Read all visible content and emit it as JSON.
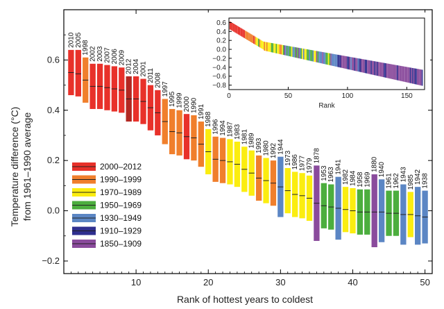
{
  "chart_data": {
    "type": "bar",
    "title": "",
    "xlabel": "Rank of hottest years to coldest",
    "ylabel_line1": "Temperature difference (°C)",
    "ylabel_line2": "from 1961–1990 average",
    "xlim": [
      0,
      51
    ],
    "ylim": [
      -0.25,
      0.8
    ],
    "xticks": [
      10,
      20,
      30,
      40,
      50
    ],
    "yticks": [
      -0.2,
      0.0,
      0.2,
      0.4,
      0.6
    ],
    "ytick_labels": [
      "−0.2",
      "0.0",
      "0.2",
      "0.4",
      "0.6"
    ],
    "legend": [
      {
        "label": "2000–2012",
        "color": "#e8312a"
      },
      {
        "label": "1990–1999",
        "color": "#f07f2c"
      },
      {
        "label": "1970–1989",
        "color": "#fbed10"
      },
      {
        "label": "1950–1969",
        "color": "#4cae3e"
      },
      {
        "label": "1930–1949",
        "color": "#5b86c4"
      },
      {
        "label": "1910–1929",
        "color": "#2f2f8f"
      },
      {
        "label": "1850–1909",
        "color": "#8a4b9c"
      }
    ],
    "colors": {
      "2000–2012": "#e8312a",
      "2000–2012 dark": "#b32822",
      "1990–1999": "#f07f2c",
      "1970–1989": "#fbed10",
      "1950–1969": "#4cae3e",
      "1930–1949": "#5b86c4",
      "1910–1929": "#2f2f8f",
      "1850–1909": "#8a4b9c"
    },
    "years": [
      {
        "rank": 1,
        "label": "2010",
        "mid": 0.55,
        "low": 0.46,
        "high": 0.64,
        "period": "2000–2012"
      },
      {
        "rank": 2,
        "label": "2005",
        "mid": 0.545,
        "low": 0.455,
        "high": 0.64,
        "period": "2000–2012"
      },
      {
        "rank": 3,
        "label": "1998",
        "mid": 0.52,
        "low": 0.43,
        "high": 0.61,
        "period": "1990–1999"
      },
      {
        "rank": 4,
        "label": "2002",
        "mid": 0.495,
        "low": 0.405,
        "high": 0.585,
        "period": "2000–2012"
      },
      {
        "rank": 5,
        "label": "2003",
        "mid": 0.495,
        "low": 0.405,
        "high": 0.585,
        "period": "2000–2012"
      },
      {
        "rank": 6,
        "label": "2007",
        "mid": 0.49,
        "low": 0.4,
        "high": 0.58,
        "period": "2000–2012"
      },
      {
        "rank": 7,
        "label": "2006",
        "mid": 0.485,
        "low": 0.395,
        "high": 0.575,
        "period": "2000–2012"
      },
      {
        "rank": 8,
        "label": "2009",
        "mid": 0.48,
        "low": 0.39,
        "high": 0.57,
        "period": "2000–2012"
      },
      {
        "rank": 9,
        "label": "2012",
        "mid": 0.445,
        "low": 0.355,
        "high": 0.535,
        "period": "2000–2012 dark"
      },
      {
        "rank": 10,
        "label": "2004",
        "mid": 0.445,
        "low": 0.355,
        "high": 0.535,
        "period": "2000–2012"
      },
      {
        "rank": 11,
        "label": "2001",
        "mid": 0.435,
        "low": 0.345,
        "high": 0.525,
        "period": "2000–2012"
      },
      {
        "rank": 12,
        "label": "2011",
        "mid": 0.41,
        "low": 0.32,
        "high": 0.5,
        "period": "2000–2012"
      },
      {
        "rank": 13,
        "label": "2008",
        "mid": 0.39,
        "low": 0.3,
        "high": 0.48,
        "period": "2000–2012"
      },
      {
        "rank": 14,
        "label": "1997",
        "mid": 0.355,
        "low": 0.265,
        "high": 0.445,
        "period": "1990–1999"
      },
      {
        "rank": 15,
        "label": "1995",
        "mid": 0.315,
        "low": 0.225,
        "high": 0.405,
        "period": "1990–1999"
      },
      {
        "rank": 16,
        "label": "1999",
        "mid": 0.31,
        "low": 0.22,
        "high": 0.4,
        "period": "1990–1999"
      },
      {
        "rank": 17,
        "label": "2000",
        "mid": 0.295,
        "low": 0.205,
        "high": 0.385,
        "period": "2000–2012"
      },
      {
        "rank": 18,
        "label": "1990",
        "mid": 0.29,
        "low": 0.2,
        "high": 0.38,
        "period": "1990–1999"
      },
      {
        "rank": 19,
        "label": "1991",
        "mid": 0.265,
        "low": 0.175,
        "high": 0.355,
        "period": "1990–1999"
      },
      {
        "rank": 20,
        "label": "1988",
        "mid": 0.235,
        "low": 0.145,
        "high": 0.325,
        "period": "1970–1989"
      },
      {
        "rank": 21,
        "label": "1996",
        "mid": 0.205,
        "low": 0.115,
        "high": 0.295,
        "period": "1990–1999"
      },
      {
        "rank": 22,
        "label": "1994",
        "mid": 0.2,
        "low": 0.11,
        "high": 0.29,
        "period": "1990–1999"
      },
      {
        "rank": 23,
        "label": "1987",
        "mid": 0.195,
        "low": 0.105,
        "high": 0.285,
        "period": "1970–1989"
      },
      {
        "rank": 24,
        "label": "1983",
        "mid": 0.185,
        "low": 0.095,
        "high": 0.275,
        "period": "1970–1989"
      },
      {
        "rank": 25,
        "label": "1981",
        "mid": 0.165,
        "low": 0.075,
        "high": 0.255,
        "period": "1970–1989"
      },
      {
        "rank": 26,
        "label": "1989",
        "mid": 0.15,
        "low": 0.06,
        "high": 0.24,
        "period": "1970–1989"
      },
      {
        "rank": 27,
        "label": "1993",
        "mid": 0.13,
        "low": 0.04,
        "high": 0.22,
        "period": "1990–1999"
      },
      {
        "rank": 28,
        "label": "1980",
        "mid": 0.12,
        "low": 0.03,
        "high": 0.21,
        "period": "1970–1989"
      },
      {
        "rank": 29,
        "label": "1992",
        "mid": 0.11,
        "low": 0.02,
        "high": 0.2,
        "period": "1990–1999"
      },
      {
        "rank": 30,
        "label": "1944",
        "mid": 0.095,
        "low": -0.025,
        "high": 0.215,
        "period": "1930–1949"
      },
      {
        "rank": 31,
        "label": "1973",
        "mid": 0.08,
        "low": -0.01,
        "high": 0.17,
        "period": "1970–1989"
      },
      {
        "rank": 32,
        "label": "1986",
        "mid": 0.065,
        "low": -0.025,
        "high": 0.155,
        "period": "1970–1989"
      },
      {
        "rank": 33,
        "label": "1977",
        "mid": 0.06,
        "low": -0.03,
        "high": 0.15,
        "period": "1970–1989"
      },
      {
        "rank": 34,
        "label": "1979",
        "mid": 0.05,
        "low": -0.04,
        "high": 0.14,
        "period": "1970–1989"
      },
      {
        "rank": 35,
        "label": "1878",
        "mid": 0.03,
        "low": -0.12,
        "high": 0.18,
        "period": "1850–1909"
      },
      {
        "rank": 36,
        "label": "1953",
        "mid": 0.02,
        "low": -0.07,
        "high": 0.11,
        "period": "1950–1969"
      },
      {
        "rank": 37,
        "label": "1963",
        "mid": 0.015,
        "low": -0.075,
        "high": 0.105,
        "period": "1950–1969"
      },
      {
        "rank": 38,
        "label": "1941",
        "mid": 0.01,
        "low": -0.115,
        "high": 0.135,
        "period": "1930–1949"
      },
      {
        "rank": 39,
        "label": "1982",
        "mid": 0.005,
        "low": -0.085,
        "high": 0.095,
        "period": "1970–1989"
      },
      {
        "rank": 40,
        "label": "1984",
        "mid": 0.0,
        "low": -0.09,
        "high": 0.09,
        "period": "1970–1989"
      },
      {
        "rank": 41,
        "label": "1958",
        "mid": -0.005,
        "low": -0.095,
        "high": 0.085,
        "period": "1950–1969"
      },
      {
        "rank": 42,
        "label": "1969",
        "mid": -0.005,
        "low": -0.095,
        "high": 0.085,
        "period": "1950–1969"
      },
      {
        "rank": 43,
        "label": "1880",
        "mid": -0.005,
        "low": -0.145,
        "high": 0.145,
        "period": "1850–1909"
      },
      {
        "rank": 44,
        "label": "1940",
        "mid": -0.005,
        "low": -0.125,
        "high": 0.125,
        "period": "1930–1949"
      },
      {
        "rank": 45,
        "label": "1961",
        "mid": -0.01,
        "low": -0.1,
        "high": 0.08,
        "period": "1950–1969"
      },
      {
        "rank": 46,
        "label": "1962",
        "mid": -0.01,
        "low": -0.1,
        "high": 0.08,
        "period": "1950–1969"
      },
      {
        "rank": 47,
        "label": "1943",
        "mid": -0.015,
        "low": -0.135,
        "high": 0.105,
        "period": "1930–1949"
      },
      {
        "rank": 48,
        "label": "1985",
        "mid": -0.015,
        "low": -0.105,
        "high": 0.075,
        "period": "1970–1989"
      },
      {
        "rank": 49,
        "label": "1942",
        "mid": -0.02,
        "low": -0.135,
        "high": 0.095,
        "period": "1930–1949"
      },
      {
        "rank": 50,
        "label": "1938",
        "mid": -0.025,
        "low": -0.13,
        "high": 0.08,
        "period": "1930–1949"
      }
    ],
    "inset": {
      "type": "bar",
      "xlabel": "Rank",
      "xlim": [
        0,
        165
      ],
      "ylim": [
        -0.9,
        0.7
      ],
      "xticks": [
        0,
        50,
        100,
        150
      ],
      "yticks": [
        0.6,
        0.4,
        0.2,
        0.0,
        -0.2,
        -0.4,
        -0.6,
        -0.8
      ],
      "ytick_labels": [
        "0.6",
        "0.4",
        "0.2",
        "0.0",
        "−0.2",
        "−0.4",
        "−0.6",
        "−0.8"
      ],
      "n_years": 163,
      "period_counts": [
        {
          "period": "2000–2012",
          "count": 13
        },
        {
          "period": "1990–1999",
          "count": 10
        },
        {
          "period": "1970–1989",
          "count": 20
        },
        {
          "period": "1950–1969",
          "count": 20
        },
        {
          "period": "1930–1949",
          "count": 20
        },
        {
          "period": "1910–1929",
          "count": 20
        },
        {
          "period": "1850–1909",
          "count": 60
        }
      ]
    }
  }
}
